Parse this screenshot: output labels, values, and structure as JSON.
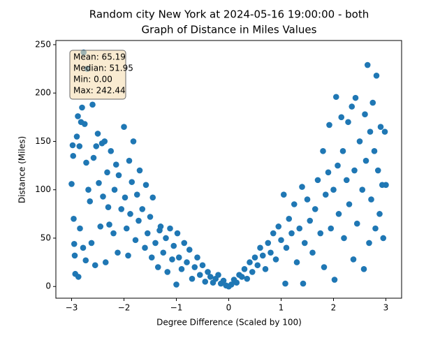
{
  "chart_data": {
    "type": "scatter",
    "title": [
      "Random city New York at 2024-05-16 19:00:00  - both",
      "Graph of Distance in Miles Values"
    ],
    "xlabel": "Degree Difference (Scaled by 100)",
    "ylabel": "Distance (Miles)",
    "annotation": [
      "Mean: 65.19",
      "Median: 51.95",
      "Min: 0.00",
      "Max: 242.44"
    ],
    "color": "#1f77b4",
    "xlim": [
      -3.3,
      3.3
    ],
    "ylim": [
      -12.1,
      254.3
    ],
    "xticks": [
      {
        "value": -3,
        "label": "−3"
      },
      {
        "value": -2,
        "label": "−2"
      },
      {
        "value": -1,
        "label": "−1"
      },
      0,
      1,
      2,
      3
    ],
    "yticks": [
      0,
      50,
      100,
      150,
      200,
      250
    ],
    "x": [
      -3.0,
      -2.98,
      -2.97,
      -2.96,
      -2.95,
      -2.94,
      -2.93,
      -2.9,
      -2.88,
      -2.87,
      -2.85,
      -2.84,
      -2.82,
      -2.8,
      -2.78,
      -2.77,
      -2.75,
      -2.73,
      -2.72,
      -2.7,
      -2.68,
      -2.65,
      -2.62,
      -2.6,
      -2.58,
      -2.55,
      -2.53,
      -2.5,
      -2.48,
      -2.45,
      -2.42,
      -2.4,
      -2.37,
      -2.35,
      -2.32,
      -2.3,
      -2.28,
      -2.25,
      -2.2,
      -2.18,
      -2.15,
      -2.12,
      -2.1,
      -2.05,
      -2.0,
      -1.98,
      -1.95,
      -1.92,
      -1.9,
      -1.88,
      -1.85,
      -1.82,
      -1.78,
      -1.75,
      -1.72,
      -1.7,
      -1.65,
      -1.6,
      -1.58,
      -1.55,
      -1.5,
      -1.47,
      -1.45,
      -1.4,
      -1.35,
      -1.32,
      -1.3,
      -1.25,
      -1.2,
      -1.17,
      -1.12,
      -1.08,
      -1.05,
      -1.0,
      -0.98,
      -0.95,
      -0.9,
      -0.85,
      -0.8,
      -0.75,
      -0.7,
      -0.65,
      -0.6,
      -0.55,
      -0.5,
      -0.45,
      -0.4,
      -0.35,
      -0.3,
      -0.25,
      -0.2,
      -0.15,
      -0.1,
      -0.05,
      0,
      0.05,
      0.1,
      0.15,
      0.2,
      0.25,
      0.3,
      0.35,
      0.4,
      0.45,
      0.5,
      0.55,
      0.6,
      0.65,
      0.7,
      0.75,
      0.8,
      0.85,
      0.9,
      0.95,
      1.0,
      1.05,
      1.08,
      1.1,
      1.15,
      1.2,
      1.25,
      1.3,
      1.35,
      1.4,
      1.42,
      1.45,
      1.5,
      1.55,
      1.6,
      1.65,
      1.7,
      1.75,
      1.8,
      1.82,
      1.85,
      1.9,
      1.92,
      1.95,
      2.0,
      2.02,
      2.05,
      2.08,
      2.1,
      2.15,
      2.18,
      2.2,
      2.25,
      2.28,
      2.3,
      2.35,
      2.38,
      2.4,
      2.42,
      2.45,
      2.5,
      2.55,
      2.58,
      2.6,
      2.62,
      2.65,
      2.68,
      2.7,
      2.72,
      2.75,
      2.78,
      2.8,
      2.82,
      2.85,
      2.88,
      2.9,
      2.93,
      2.95,
      2.98,
      3.0
    ],
    "values": [
      106,
      146,
      135,
      70,
      44,
      32,
      13,
      155,
      176,
      10,
      145,
      60,
      170,
      185,
      40,
      242,
      168,
      27,
      128,
      225,
      100,
      88,
      45,
      188,
      133,
      22,
      145,
      158,
      107,
      62,
      148,
      93,
      150,
      25,
      118,
      82,
      64,
      140,
      55,
      100,
      126,
      35,
      115,
      80,
      165,
      92,
      60,
      32,
      130,
      75,
      108,
      150,
      48,
      95,
      68,
      120,
      80,
      40,
      105,
      55,
      72,
      30,
      92,
      45,
      20,
      58,
      62,
      35,
      50,
      15,
      60,
      28,
      42,
      2,
      55,
      30,
      18,
      45,
      25,
      38,
      8,
      20,
      30,
      12,
      22,
      5,
      15,
      10,
      4,
      8,
      12,
      3,
      6,
      1,
      0,
      2,
      7,
      4,
      12,
      10,
      18,
      8,
      25,
      15,
      30,
      22,
      40,
      32,
      18,
      45,
      35,
      55,
      28,
      62,
      48,
      95,
      3,
      40,
      70,
      55,
      85,
      25,
      60,
      103,
      3,
      45,
      90,
      68,
      35,
      80,
      110,
      55,
      140,
      20,
      95,
      118,
      167,
      60,
      100,
      7,
      196,
      125,
      75,
      175,
      140,
      50,
      110,
      170,
      85,
      186,
      28,
      120,
      195,
      65,
      150,
      100,
      18,
      178,
      130,
      229,
      45,
      160,
      90,
      190,
      140,
      60,
      218,
      120,
      75,
      165,
      105,
      50,
      160,
      105
    ]
  }
}
